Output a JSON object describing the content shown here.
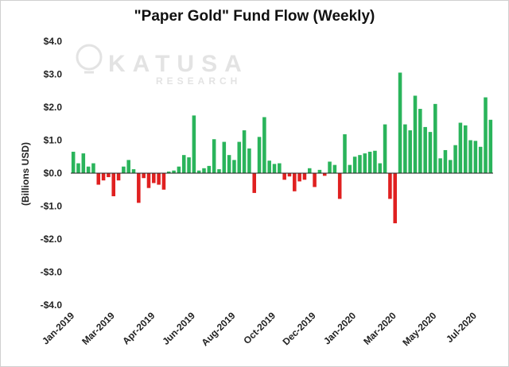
{
  "chart_data": {
    "type": "bar",
    "title": "\"Paper Gold\" Fund Flow (Weekly)",
    "ylabel": "(Billions USD)",
    "xlabel": "",
    "ylim": [
      -4,
      4
    ],
    "yticks": [
      4,
      3,
      2,
      1,
      0,
      -1,
      -2,
      -3,
      -4
    ],
    "ytick_labels": [
      "$4.0",
      "$3.0",
      "$2.0",
      "$1.0",
      "$0.0",
      "-$1.0",
      "-$2.0",
      "-$3.0",
      "-$4.0"
    ],
    "x_tick_labels": [
      {
        "label": "Jan-2019",
        "index": 0
      },
      {
        "label": "Mar-2019",
        "index": 8
      },
      {
        "label": "Apr-2019",
        "index": 16
      },
      {
        "label": "Jun-2019",
        "index": 24
      },
      {
        "label": "Aug-2019",
        "index": 32
      },
      {
        "label": "Oct-2019",
        "index": 40
      },
      {
        "label": "Dec-2019",
        "index": 48
      },
      {
        "label": "Jan-2020",
        "index": 56
      },
      {
        "label": "Mar-2020",
        "index": 64
      },
      {
        "label": "May-2020",
        "index": 72
      },
      {
        "label": "Jul-2020",
        "index": 80
      }
    ],
    "values": [
      0.65,
      0.3,
      0.6,
      0.2,
      0.3,
      -0.35,
      -0.22,
      -0.12,
      -0.7,
      -0.22,
      0.2,
      0.4,
      0.12,
      -0.9,
      -0.15,
      -0.45,
      -0.3,
      -0.35,
      -0.5,
      0.05,
      0.08,
      0.2,
      0.55,
      0.48,
      1.75,
      0.08,
      0.15,
      0.22,
      1.03,
      0.12,
      0.95,
      0.55,
      0.4,
      0.95,
      1.3,
      0.75,
      -0.6,
      1.1,
      1.7,
      0.38,
      0.28,
      0.3,
      -0.2,
      -0.1,
      -0.55,
      -0.25,
      -0.2,
      0.15,
      -0.42,
      0.1,
      -0.08,
      0.35,
      0.25,
      -0.78,
      1.18,
      0.25,
      0.5,
      0.55,
      0.6,
      0.65,
      0.68,
      0.3,
      1.48,
      -0.78,
      -1.52,
      3.05,
      1.48,
      1.3,
      2.35,
      1.95,
      1.4,
      1.25,
      2.1,
      0.45,
      0.7,
      0.4,
      0.85,
      1.53,
      1.45,
      1.0,
      0.98,
      0.8,
      2.3,
      1.62
    ],
    "positive_color": "#2ab45b",
    "negative_color": "#e02020",
    "grid": false,
    "legend": "none"
  },
  "watermark": {
    "name": "KATUSA",
    "subtitle": "RESEARCH",
    "color": "#e3e3e3"
  }
}
